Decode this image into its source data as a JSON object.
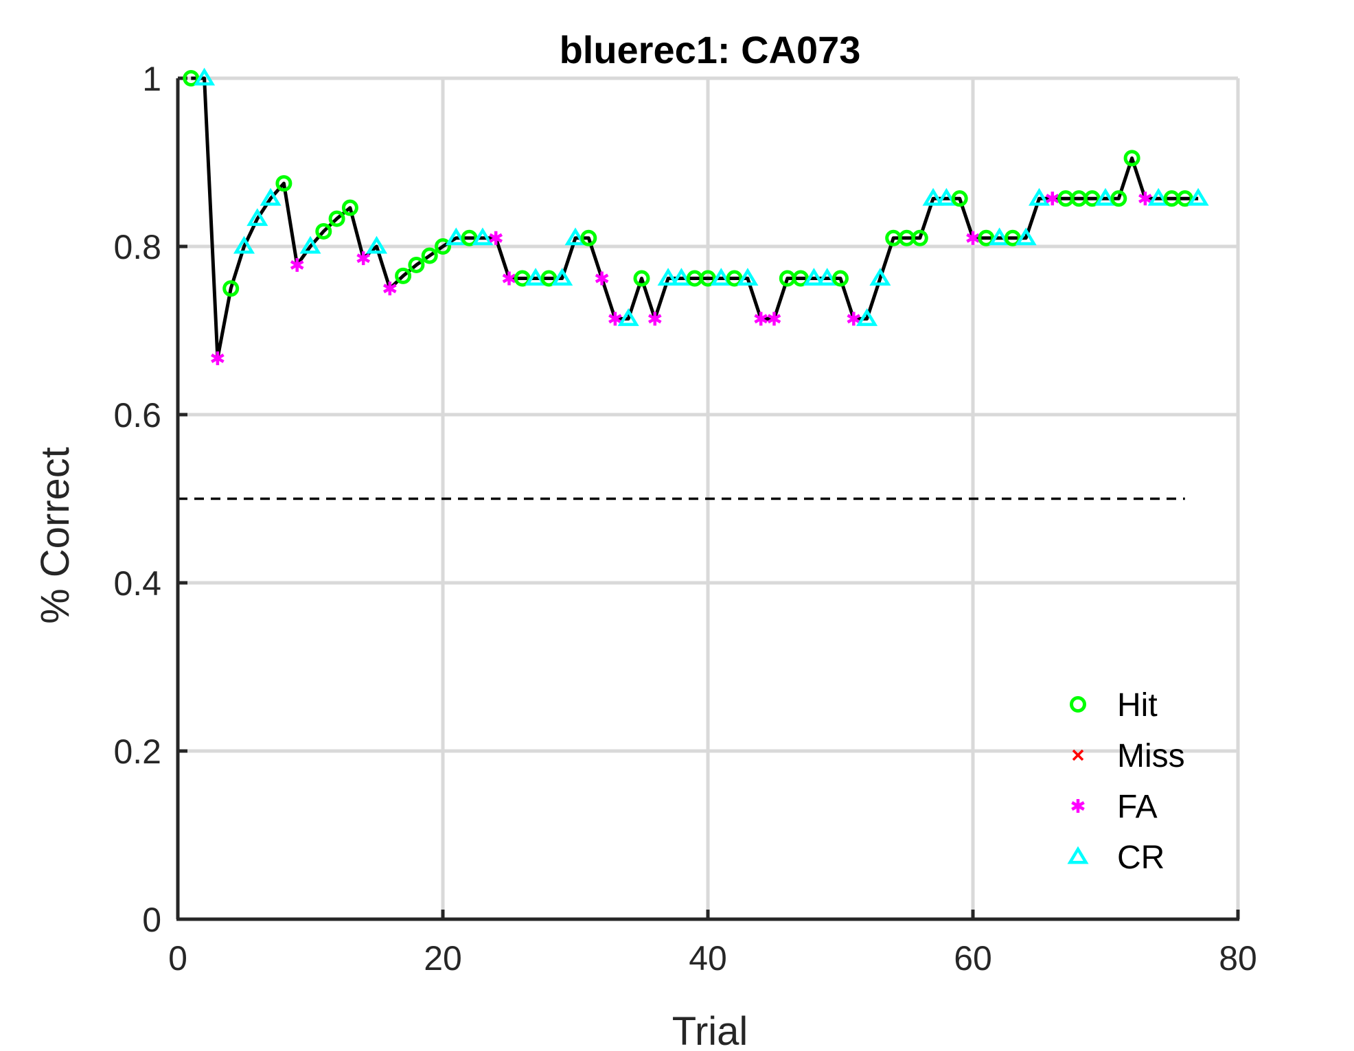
{
  "chart_data": {
    "type": "line",
    "title": "bluerec1: CA073",
    "xlabel": "Trial",
    "ylabel": "% Correct",
    "xlim": [
      0,
      80
    ],
    "ylim": [
      0,
      1
    ],
    "xticks": [
      "0",
      "20",
      "40",
      "60",
      "80"
    ],
    "yticks": [
      "0",
      "0.2",
      "0.4",
      "0.6",
      "0.8",
      "1"
    ],
    "grid": true,
    "legend_position": "bottom-right",
    "chance_line": {
      "y": 0.5,
      "x_start": 0,
      "x_end": 76,
      "style": "dashed"
    },
    "x": [
      1,
      2,
      3,
      4,
      5,
      6,
      7,
      8,
      9,
      10,
      11,
      12,
      13,
      14,
      15,
      16,
      17,
      18,
      19,
      20,
      21,
      22,
      23,
      24,
      25,
      26,
      27,
      28,
      29,
      30,
      31,
      32,
      33,
      34,
      35,
      36,
      37,
      38,
      39,
      40,
      41,
      42,
      43,
      44,
      45,
      46,
      47,
      48,
      49,
      50,
      51,
      52,
      53,
      54,
      55,
      56,
      57,
      58,
      59,
      60,
      61,
      62,
      63,
      64,
      65,
      66,
      67,
      68,
      69,
      70,
      71,
      72,
      73,
      74,
      75,
      76,
      77
    ],
    "y": [
      1.0,
      1.0,
      0.667,
      0.75,
      0.8,
      0.833,
      0.857,
      0.875,
      0.778,
      0.8,
      0.818,
      0.833,
      0.846,
      0.786,
      0.8,
      0.75,
      0.765,
      0.778,
      0.789,
      0.8,
      0.81,
      0.81,
      0.81,
      0.81,
      0.762,
      0.762,
      0.762,
      0.762,
      0.762,
      0.81,
      0.81,
      0.762,
      0.714,
      0.714,
      0.762,
      0.714,
      0.762,
      0.762,
      0.762,
      0.762,
      0.762,
      0.762,
      0.762,
      0.714,
      0.714,
      0.762,
      0.762,
      0.762,
      0.762,
      0.762,
      0.714,
      0.714,
      0.762,
      0.81,
      0.81,
      0.81,
      0.857,
      0.857,
      0.857,
      0.81,
      0.81,
      0.81,
      0.81,
      0.81,
      0.857,
      0.857,
      0.857,
      0.857,
      0.857,
      0.857,
      0.857,
      0.905,
      0.857,
      0.857,
      0.857,
      0.857,
      0.857
    ],
    "outcomes": [
      "Hit",
      "CR",
      "FA",
      "Hit",
      "CR",
      "CR",
      "CR",
      "Hit",
      "FA",
      "CR",
      "Hit",
      "Hit",
      "Hit",
      "FA",
      "CR",
      "FA",
      "Hit",
      "Hit",
      "Hit",
      "Hit",
      "CR",
      "Hit",
      "CR",
      "FA",
      "FA",
      "Hit",
      "CR",
      "Hit",
      "CR",
      "CR",
      "Hit",
      "FA",
      "FA",
      "CR",
      "Hit",
      "FA",
      "CR",
      "CR",
      "Hit",
      "Hit",
      "CR",
      "Hit",
      "CR",
      "FA",
      "FA",
      "Hit",
      "Hit",
      "CR",
      "CR",
      "Hit",
      "FA",
      "CR",
      "CR",
      "Hit",
      "Hit",
      "Hit",
      "CR",
      "CR",
      "Hit",
      "FA",
      "Hit",
      "CR",
      "Hit",
      "CR",
      "CR",
      "FA",
      "Hit",
      "Hit",
      "Hit",
      "CR",
      "Hit",
      "Hit",
      "FA",
      "CR",
      "Hit",
      "Hit",
      "CR"
    ],
    "series": [
      {
        "name": "Hit",
        "marker": "circle",
        "color": "#00ff00"
      },
      {
        "name": "Miss",
        "marker": "x",
        "color": "#ff0000"
      },
      {
        "name": "FA",
        "marker": "asterisk",
        "color": "#ff00ff"
      },
      {
        "name": "CR",
        "marker": "triangle",
        "color": "#00ffff"
      }
    ],
    "line_color": "#000000",
    "grid_color": "#d9d9d9",
    "axis_color": "#262626"
  }
}
